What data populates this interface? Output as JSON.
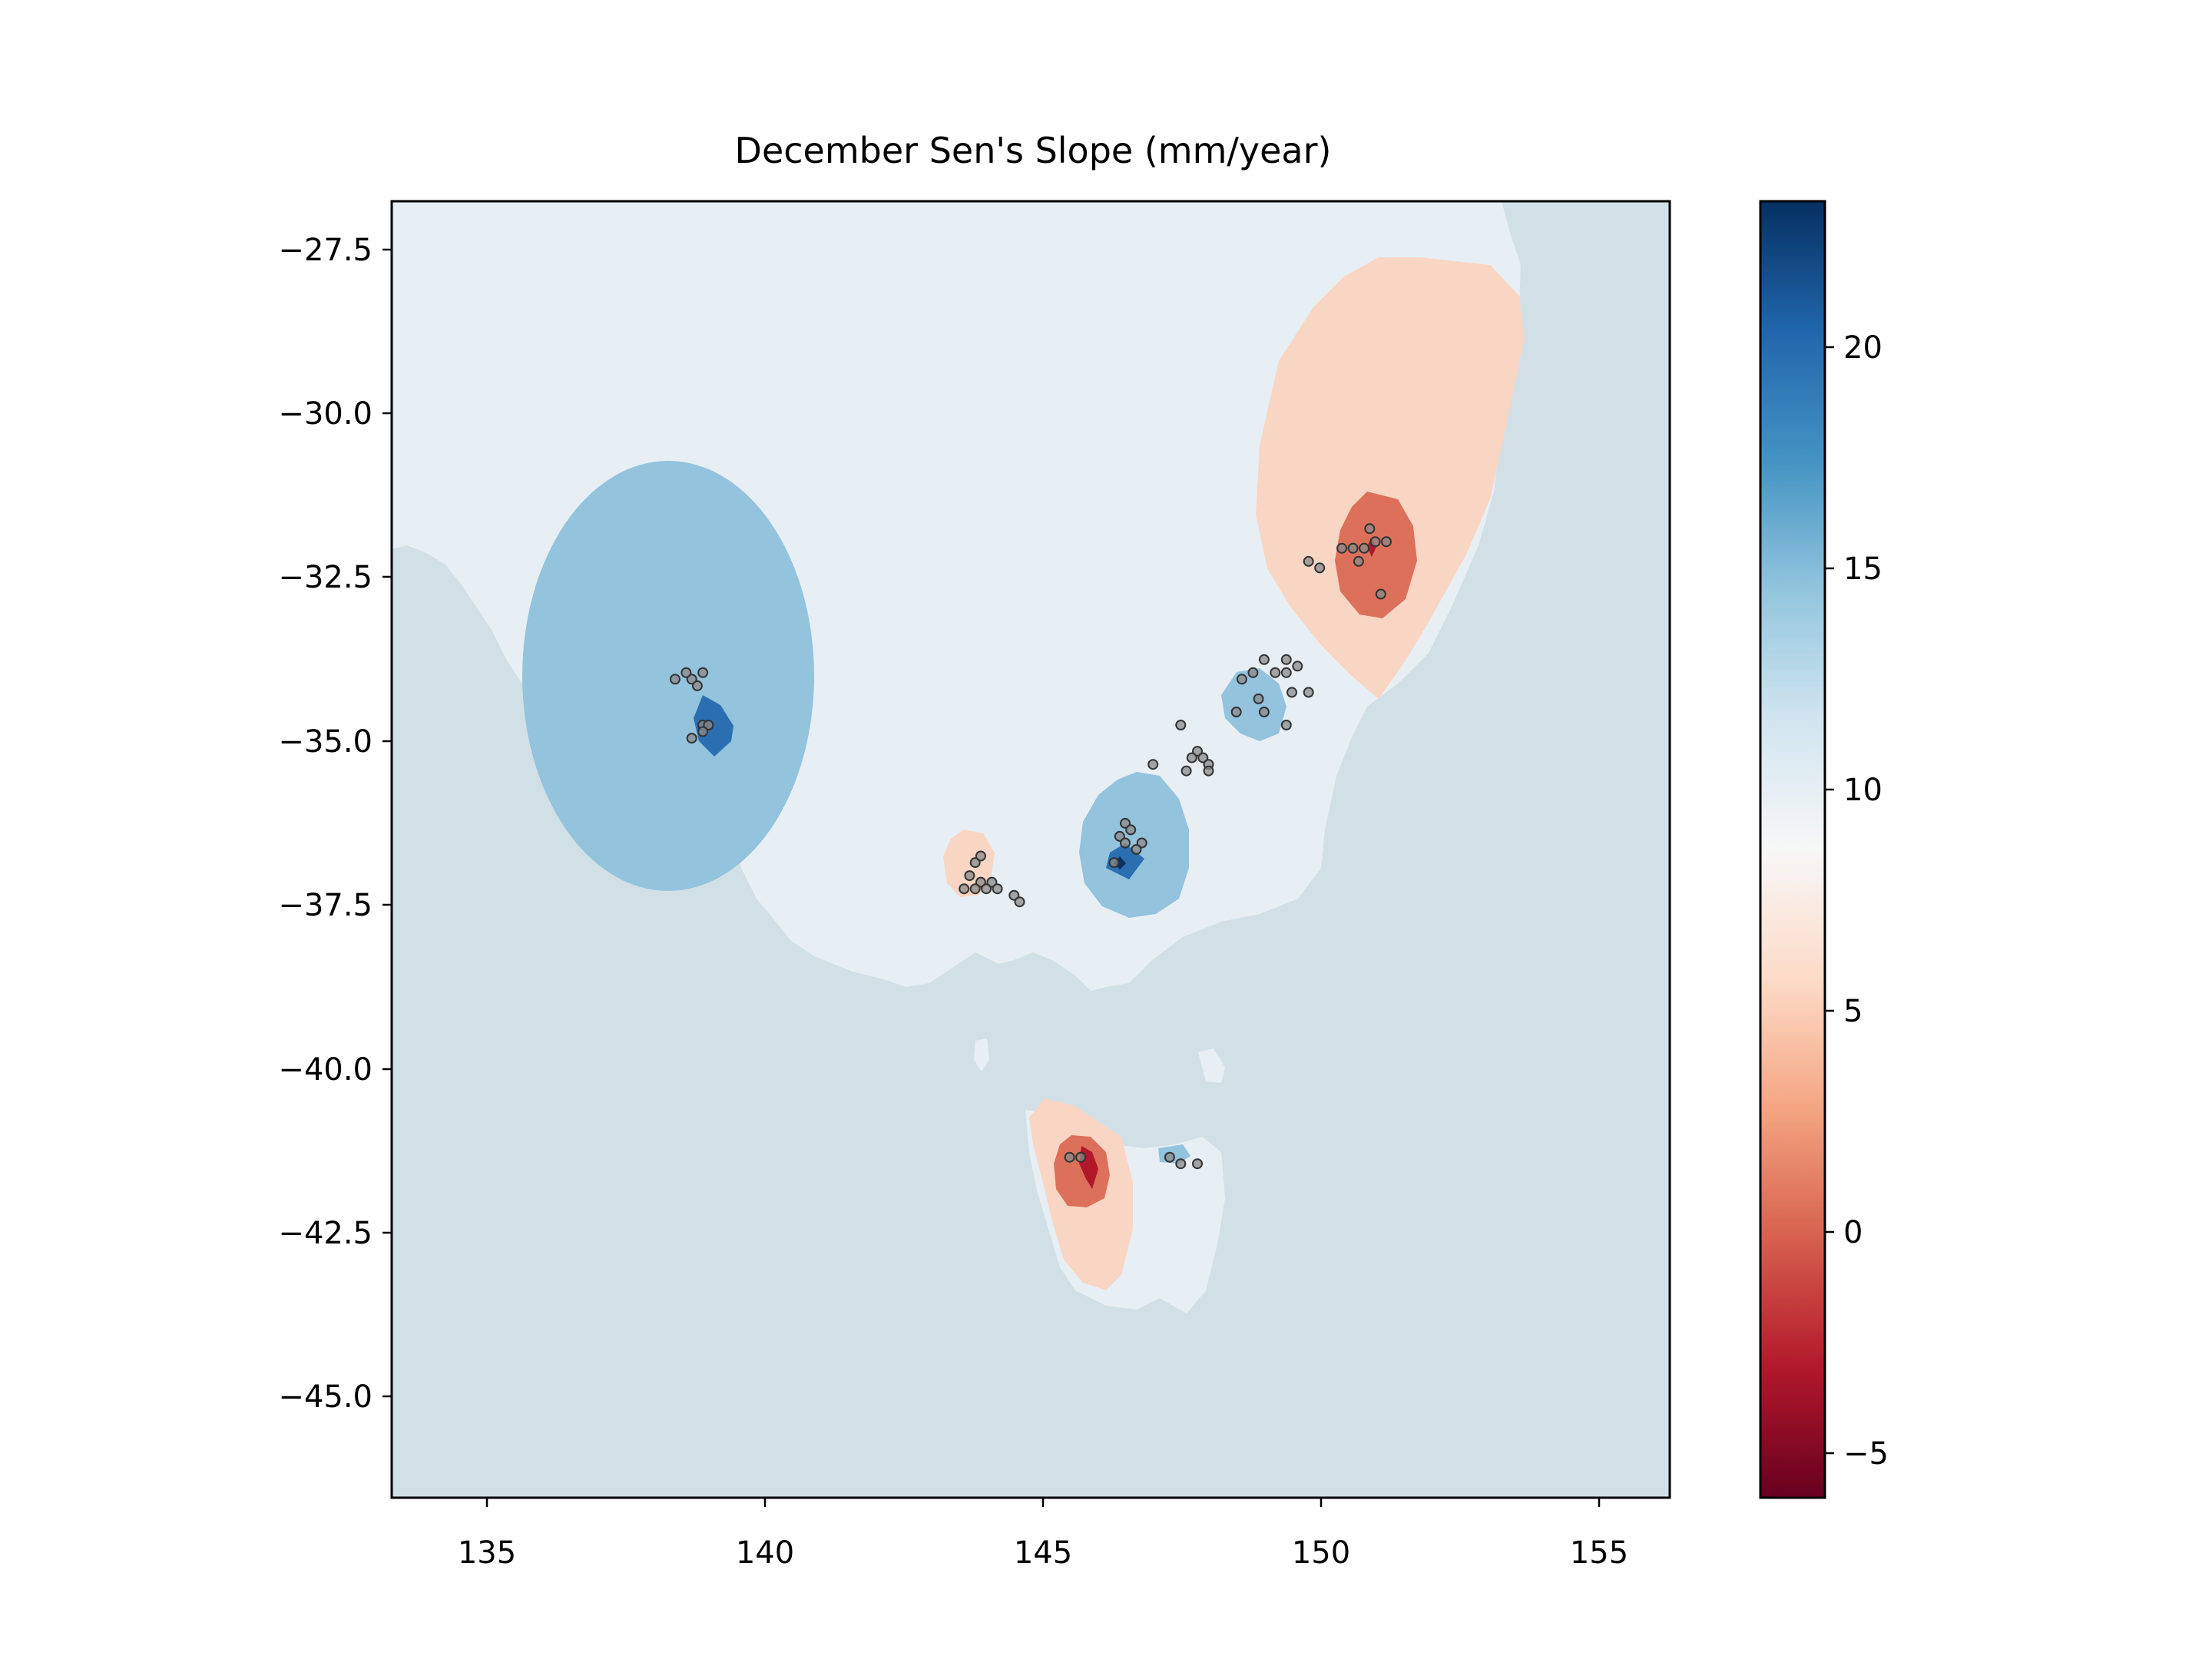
{
  "title": "December Sen's Slope (mm/year)",
  "map": {
    "lon_range": [
      133.3,
      156.3
    ],
    "lat_range": [
      -46.6,
      -26.8
    ],
    "x_ticks": [
      135,
      140,
      145,
      150,
      155
    ],
    "y_ticks": [
      -27.5,
      -30.0,
      -32.5,
      -35.0,
      -37.5,
      -40.0,
      -42.5,
      -45.0
    ],
    "x_tick_labels": [
      "135",
      "140",
      "145",
      "150",
      "155"
    ],
    "y_tick_labels": [
      "−27.5",
      "−30.0",
      "−32.5",
      "−35.0",
      "−37.5",
      "−40.0",
      "−42.5",
      "−45.0"
    ],
    "land_color": "#e7eff4",
    "ocean_color": "#d1e0e7"
  },
  "colorbar": {
    "range": [
      -6.2,
      23.1
    ],
    "ticks": [
      -5,
      0,
      5,
      10,
      15,
      20
    ],
    "tick_labels": [
      "−5",
      "0",
      "5",
      "10",
      "15",
      "20"
    ],
    "colormap": "RdBu",
    "colormap_stops": [
      "#67001f",
      "#b2182b",
      "#d6604d",
      "#f4a582",
      "#fddbc7",
      "#f7f7f7",
      "#d1e5f0",
      "#92c5de",
      "#4393c3",
      "#2166ac",
      "#053061"
    ]
  },
  "stations": [
    [
      138.7,
      -34.1
    ],
    [
      138.9,
      -34.0
    ],
    [
      138.6,
      -34.0
    ],
    [
      138.4,
      -34.1
    ],
    [
      138.8,
      -34.2
    ],
    [
      138.9,
      -34.8
    ],
    [
      139.0,
      -34.8
    ],
    [
      138.9,
      -34.9
    ],
    [
      138.7,
      -35.0
    ],
    [
      143.8,
      -36.9
    ],
    [
      143.9,
      -36.8
    ],
    [
      143.7,
      -37.1
    ],
    [
      143.9,
      -37.2
    ],
    [
      143.6,
      -37.3
    ],
    [
      143.8,
      -37.3
    ],
    [
      144.1,
      -37.2
    ],
    [
      144.2,
      -37.3
    ],
    [
      144.5,
      -37.4
    ],
    [
      144.6,
      -37.5
    ],
    [
      144.0,
      -37.3
    ],
    [
      146.3,
      -36.9
    ],
    [
      146.4,
      -36.5
    ],
    [
      146.5,
      -36.3
    ],
    [
      146.6,
      -36.4
    ],
    [
      146.8,
      -36.6
    ],
    [
      146.7,
      -36.7
    ],
    [
      146.5,
      -36.6
    ],
    [
      147.0,
      -35.4
    ],
    [
      147.5,
      -34.8
    ],
    [
      147.8,
      -35.2
    ],
    [
      147.9,
      -35.3
    ],
    [
      148.0,
      -35.4
    ],
    [
      148.0,
      -35.5
    ],
    [
      147.6,
      -35.5
    ],
    [
      147.7,
      -35.3
    ],
    [
      148.5,
      -34.6
    ],
    [
      148.8,
      -34.0
    ],
    [
      149.0,
      -33.8
    ],
    [
      149.4,
      -33.8
    ],
    [
      149.6,
      -33.9
    ],
    [
      149.4,
      -34.0
    ],
    [
      149.2,
      -34.0
    ],
    [
      148.9,
      -34.4
    ],
    [
      149.0,
      -34.6
    ],
    [
      149.5,
      -34.3
    ],
    [
      149.8,
      -34.3
    ],
    [
      149.4,
      -34.8
    ],
    [
      148.6,
      -34.1
    ],
    [
      149.8,
      -32.3
    ],
    [
      150.0,
      -32.4
    ],
    [
      150.4,
      -32.1
    ],
    [
      150.6,
      -32.1
    ],
    [
      150.8,
      -32.1
    ],
    [
      151.0,
      -32.0
    ],
    [
      151.2,
      -32.0
    ],
    [
      150.9,
      -31.8
    ],
    [
      150.7,
      -32.3
    ],
    [
      151.1,
      -32.8
    ],
    [
      145.5,
      -41.4
    ],
    [
      145.7,
      -41.4
    ],
    [
      147.3,
      -41.4
    ],
    [
      147.5,
      -41.5
    ],
    [
      147.8,
      -41.5
    ]
  ]
}
